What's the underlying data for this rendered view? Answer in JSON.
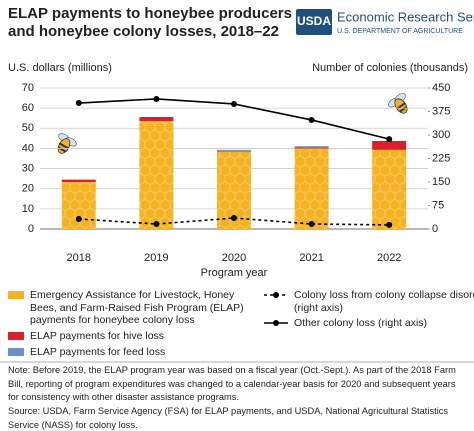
{
  "header": {
    "logo_mark": "USDA",
    "agency": "Economic Research Service",
    "department": "U.S. DEPARTMENT OF AGRICULTURE"
  },
  "chart_data": {
    "type": "bar",
    "title": "ELAP payments to honeybee producers and honeybee colony losses, 2018–22",
    "ylabel": "U.S. dollars (millions)",
    "y2label": "Number of colonies (thousands)",
    "xlabel": "Program year",
    "categories": [
      "2018",
      "2019",
      "2020",
      "2021",
      "2022"
    ],
    "series": [
      {
        "name": "Emergency Assistance for Livestock, Honey Bees, and Farm-Raised Fish Program (ELAP) payments for honeybee colony loss",
        "type": "bar",
        "color": "#f5b324",
        "values": [
          23.3,
          53.6,
          38.5,
          40,
          39.3
        ]
      },
      {
        "name": "ELAP payments for hive loss",
        "type": "bar",
        "color": "#d9202b",
        "values": [
          1.2,
          2,
          0.3,
          0.5,
          4.4
        ]
      },
      {
        "name": "ELAP payments for feed loss",
        "type": "bar",
        "color": "#6f8fca",
        "values": [
          0,
          0,
          0.5,
          0.6,
          0
        ]
      },
      {
        "name": "Colony loss from colony collapse disorder (right axis)",
        "type": "line",
        "axis": "y2",
        "dashed": true,
        "color": "#000000",
        "values": [
          32,
          16,
          35,
          16,
          13
        ]
      },
      {
        "name": "Other colony loss (right axis)",
        "type": "line",
        "axis": "y2",
        "dashed": false,
        "color": "#000000",
        "values": [
          402,
          415,
          399,
          348,
          287
        ]
      }
    ],
    "ylim": [
      0,
      70
    ],
    "yticks": [
      0,
      10,
      20,
      30,
      40,
      50,
      60,
      70
    ],
    "y2lim": [
      0,
      450
    ],
    "y2ticks": [
      0,
      75,
      150,
      225,
      300,
      375,
      450
    ],
    "note": "Note: Before 2019, the ELAP program year was based on a fiscal year (Oct.-Sept.). As part of the 2018 Farm Bill, reporting of program expenditures was changed to a calendar-year basis for 2020 and subsequent years for consistency with other disaster assistance programs.",
    "source": "Source: USDA, Farm Service Agency (FSA) for ELAP payments, and USDA, National Agricultural Statistics Service (NASS) for colony loss."
  }
}
